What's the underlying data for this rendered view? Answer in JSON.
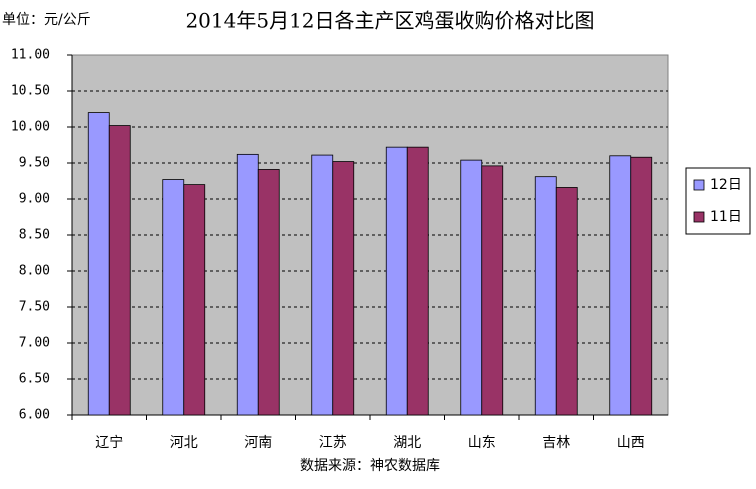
{
  "chart_data": {
    "type": "bar",
    "title": "2014年5月12日各主产区鸡蛋收购价格对比图",
    "unit_label": "单位：元/公斤",
    "source": "数据来源：神农数据库",
    "categories": [
      "辽宁",
      "河北",
      "河南",
      "江苏",
      "湖北",
      "山东",
      "吉林",
      "山西"
    ],
    "series": [
      {
        "name": "12日",
        "color": "#9999ff",
        "values": [
          10.2,
          9.27,
          9.62,
          9.61,
          9.72,
          9.54,
          9.31,
          9.6
        ]
      },
      {
        "name": "11日",
        "color": "#993366",
        "values": [
          10.02,
          9.2,
          9.41,
          9.52,
          9.72,
          9.46,
          9.16,
          9.58
        ]
      }
    ],
    "ylim": [
      6,
      11
    ],
    "yticks": [
      {
        "value": 6,
        "label": "6.00"
      },
      {
        "value": 6.5,
        "label": "6.50"
      },
      {
        "value": 7,
        "label": "7.00"
      },
      {
        "value": 7.5,
        "label": "7.50"
      },
      {
        "value": 8,
        "label": "8.00"
      },
      {
        "value": 8.5,
        "label": "8.50"
      },
      {
        "value": 9,
        "label": "9.00"
      },
      {
        "value": 9.5,
        "label": "9.50"
      },
      {
        "value": 10,
        "label": "10.00"
      },
      {
        "value": 10.5,
        "label": "10.50"
      },
      {
        "value": 11,
        "label": "11.00"
      }
    ],
    "grid": true,
    "legend": "right"
  }
}
